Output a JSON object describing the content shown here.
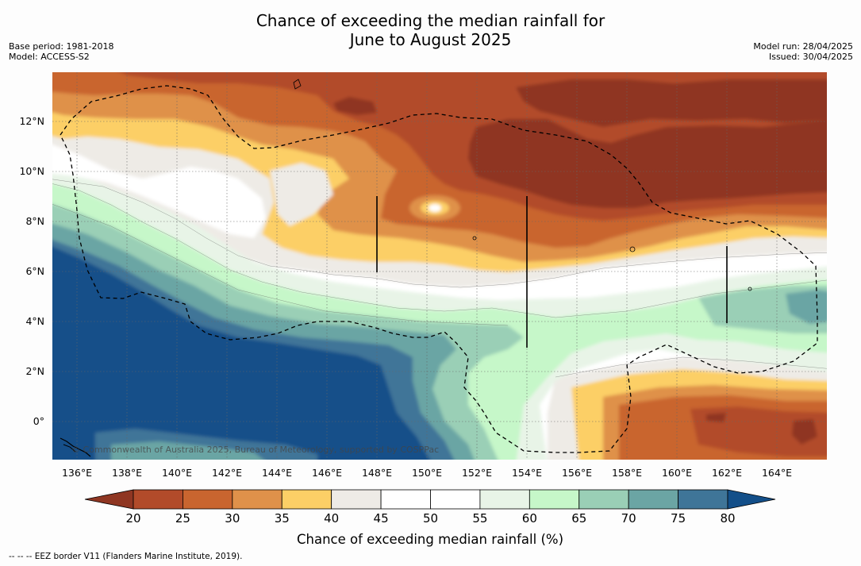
{
  "title": {
    "line1": "Chance of exceeding the median rainfall for",
    "line2": "June to August 2025"
  },
  "meta_left": {
    "base_period": "Base period: 1981-2018",
    "model": "Model: ACCESS-S2"
  },
  "meta_right": {
    "model_run": "Model run: 28/04/2025",
    "issued": "Issued: 30/04/2025"
  },
  "copyright": "© Commonwealth of Australia 2025, Bureau of Meteorology, supported by COSPPac",
  "map": {
    "lon_labels": [
      "136°E",
      "138°E",
      "140°E",
      "142°E",
      "144°E",
      "146°E",
      "148°E",
      "150°E",
      "152°E",
      "154°E",
      "156°E",
      "158°E",
      "160°E",
      "162°E",
      "164°E"
    ],
    "lat_labels": [
      "12°N",
      "10°N",
      "8°N",
      "6°N",
      "4°N",
      "2°N",
      "0°"
    ]
  },
  "colorbar": {
    "ticks": [
      "20",
      "25",
      "30",
      "35",
      "40",
      "45",
      "50",
      "55",
      "60",
      "65",
      "70",
      "75",
      "80"
    ],
    "colors": [
      "#8f3622",
      "#b24b2a",
      "#c9652f",
      "#df914a",
      "#fccf66",
      "#eeebe6",
      "#ffffff",
      "#ffffff",
      "#e8f4e7",
      "#c6f7c9",
      "#9acfb6",
      "#6ba5a4",
      "#3f7598",
      "#134f89"
    ],
    "label": "Chance of exceeding median rainfall (%)"
  },
  "footer": "--  --  -- EEZ border V11 (Flanders Marine Institute, 2019)."
}
